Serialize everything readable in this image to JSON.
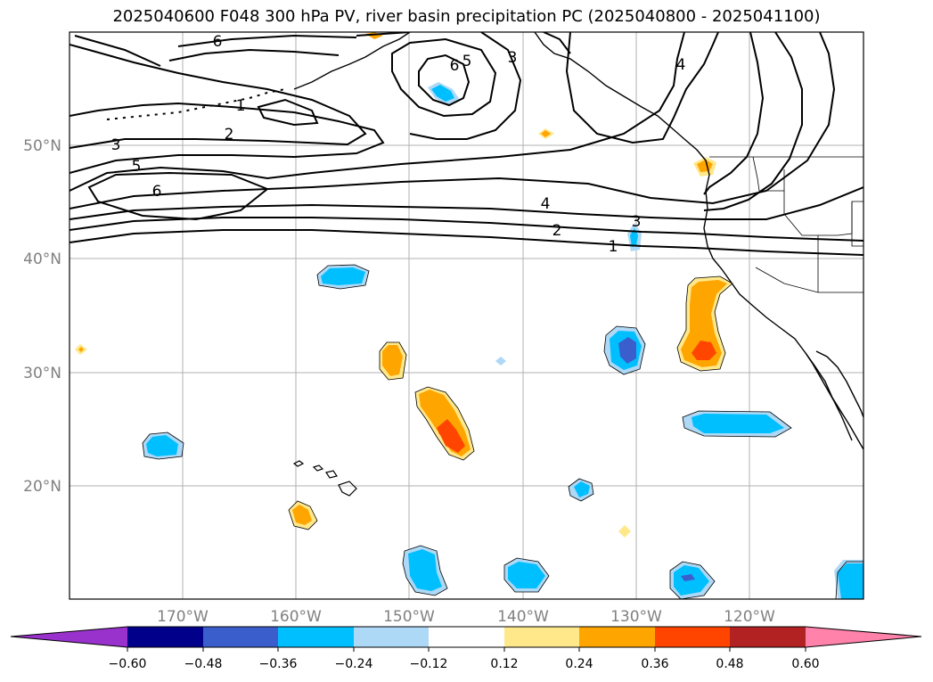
{
  "title": "2025040600 F048 300 hPa PV, river basin precipitation PC (2025040800 - 2025041100)",
  "chart_data": {
    "type": "map",
    "title": "2025040600 F048 300 hPa PV, river basin precipitation PC (2025040800 - 2025041100)",
    "lon_range": [
      -180,
      -110
    ],
    "lat_range": [
      10,
      60
    ],
    "lon_ticks": [
      "170°W",
      "160°W",
      "150°W",
      "140°W",
      "130°W",
      "120°W"
    ],
    "lat_ticks": [
      "50°N",
      "40°N",
      "30°N",
      "20°N"
    ],
    "grid": true,
    "colorbar": {
      "tick_labels": [
        "−0.60",
        "−0.48",
        "−0.36",
        "−0.24",
        "−0.12",
        "0.12",
        "0.24",
        "0.36",
        "0.48",
        "0.60"
      ],
      "colors": [
        "#9932cc",
        "#00008b",
        "#3a5fcd",
        "#00bfff",
        "#add8f6",
        "#ffffff",
        "#ffe88a",
        "#ffa500",
        "#ff4500",
        "#b22222",
        "#ff82ab"
      ]
    },
    "pv_contour_labels": [
      "6",
      "5",
      "3",
      "1",
      "2",
      "3",
      "5",
      "6",
      "4",
      "2",
      "1",
      "3",
      "6",
      "4"
    ]
  }
}
